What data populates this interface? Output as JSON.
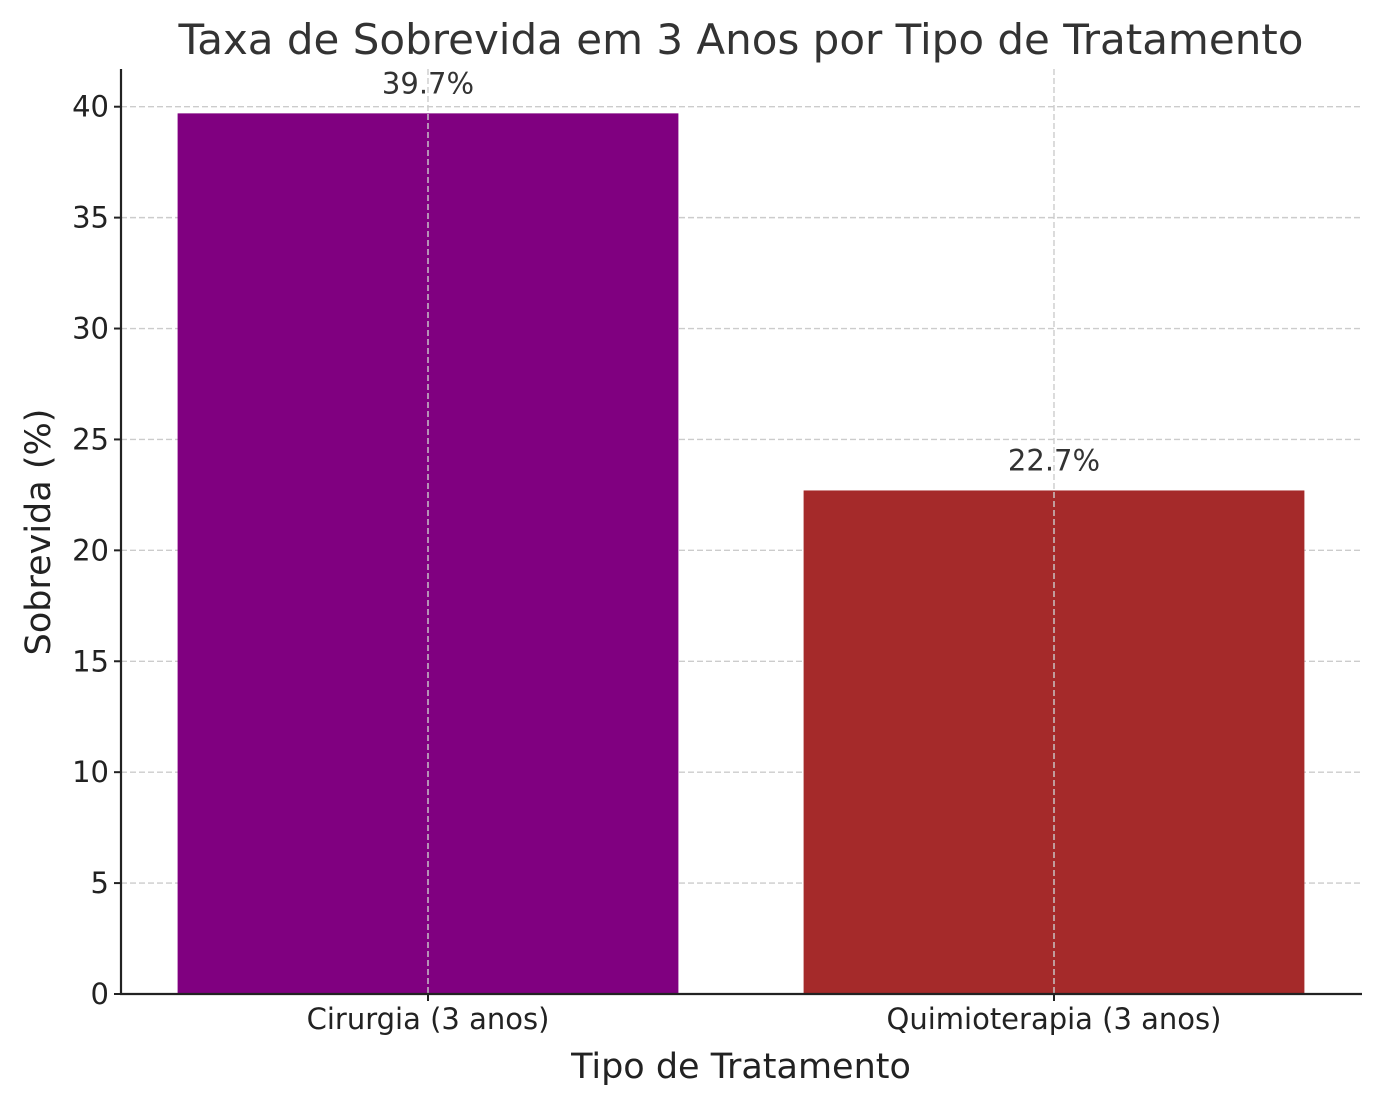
{
  "chart_data": {
    "type": "bar",
    "title": "Taxa de Sobrevida em 3 Anos por Tipo de Tratamento",
    "xlabel": "Tipo de Tratamento",
    "ylabel": "Sobrevida (%)",
    "categories": [
      "Cirurgia (3 anos)",
      "Quimioterapia (3 anos)"
    ],
    "values": [
      39.7,
      22.7
    ],
    "value_labels": [
      "39.7%",
      "22.7%"
    ],
    "bar_colors": [
      "#800080",
      "#a52a2a"
    ],
    "ylim": [
      0,
      41.7
    ],
    "yticks": [
      0,
      5,
      10,
      15,
      20,
      25,
      30,
      35,
      40
    ],
    "ytick_labels": [
      "0",
      "5",
      "10",
      "15",
      "20",
      "25",
      "30",
      "35",
      "40"
    ],
    "grid": true,
    "grid_style": "dashed",
    "legend": "none"
  },
  "colors": {
    "axis": "#222222",
    "grid": "#cccccc",
    "text": "#333333"
  }
}
